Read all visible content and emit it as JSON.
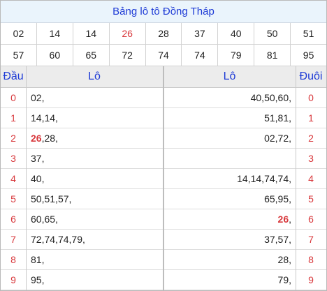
{
  "title": "Bảng lô tô Đồng Tháp",
  "numbers_row1": [
    "02",
    "14",
    "14",
    "26",
    "28",
    "37",
    "40",
    "50",
    "51"
  ],
  "numbers_row2": [
    "57",
    "60",
    "65",
    "72",
    "74",
    "74",
    "79",
    "81",
    "95"
  ],
  "highlight_number": "26",
  "headers": {
    "dau": "Đầu",
    "lo_left": "Lô",
    "lo_right": "Lô",
    "duoi": "Đuôi"
  },
  "rows": [
    {
      "dau": "0",
      "lo_left": [
        "02"
      ],
      "lo_right": [
        "40",
        "50",
        "60"
      ],
      "duoi": "0"
    },
    {
      "dau": "1",
      "lo_left": [
        "14",
        "14"
      ],
      "lo_right": [
        "51",
        "81"
      ],
      "duoi": "1"
    },
    {
      "dau": "2",
      "lo_left": [
        "26",
        "28"
      ],
      "lo_right": [
        "02",
        "72"
      ],
      "duoi": "2"
    },
    {
      "dau": "3",
      "lo_left": [
        "37"
      ],
      "lo_right": [],
      "duoi": "3"
    },
    {
      "dau": "4",
      "lo_left": [
        "40"
      ],
      "lo_right": [
        "14",
        "14",
        "74",
        "74"
      ],
      "duoi": "4"
    },
    {
      "dau": "5",
      "lo_left": [
        "50",
        "51",
        "57"
      ],
      "lo_right": [
        "65",
        "95"
      ],
      "duoi": "5"
    },
    {
      "dau": "6",
      "lo_left": [
        "60",
        "65"
      ],
      "lo_right": [
        "26"
      ],
      "duoi": "6"
    },
    {
      "dau": "7",
      "lo_left": [
        "72",
        "74",
        "74",
        "79"
      ],
      "lo_right": [
        "37",
        "57"
      ],
      "duoi": "7"
    },
    {
      "dau": "8",
      "lo_left": [
        "81"
      ],
      "lo_right": [
        "28"
      ],
      "duoi": "8"
    },
    {
      "dau": "9",
      "lo_left": [
        "95"
      ],
      "lo_right": [
        "79"
      ],
      "duoi": "9"
    }
  ],
  "colors": {
    "title_blue": "#1e3bd6",
    "highlight_red": "#d8383c",
    "title_bg": "#eaf4fc",
    "header_bg": "#ececec"
  }
}
